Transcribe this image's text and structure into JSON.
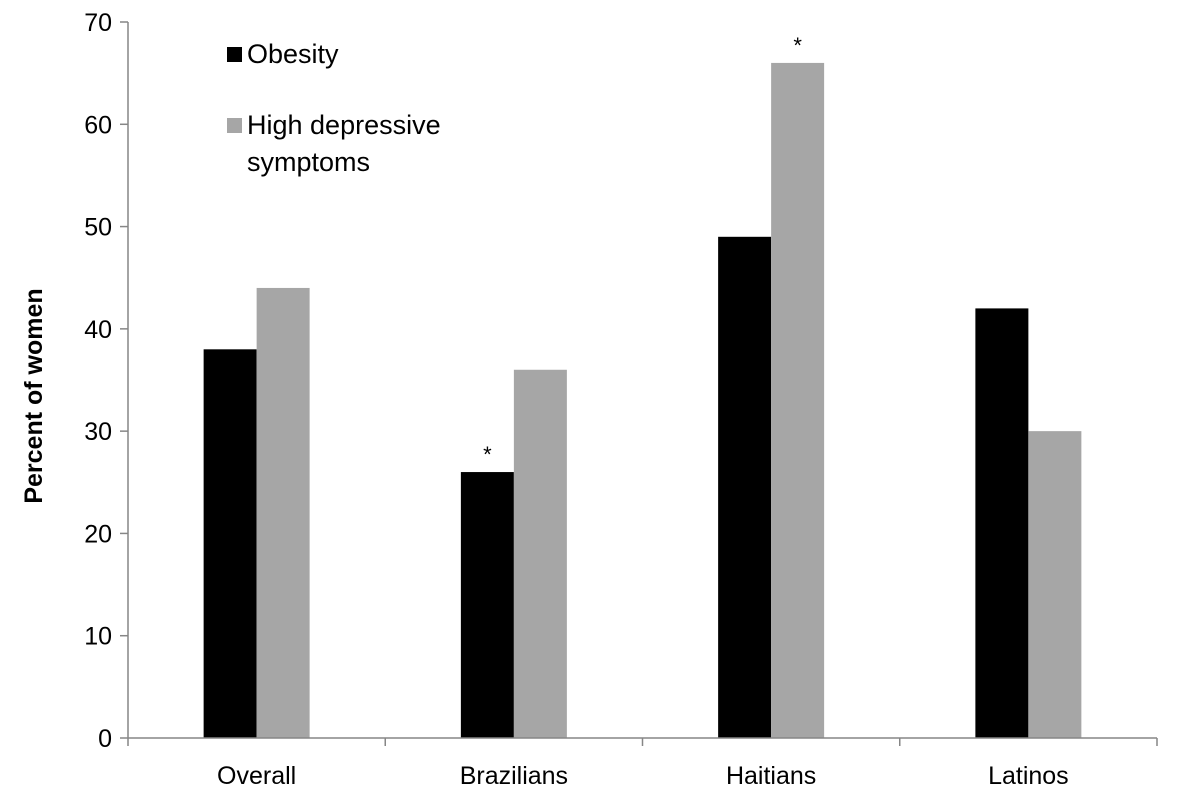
{
  "chart_data": {
    "type": "bar",
    "title": "",
    "xlabel": "",
    "ylabel": "Percent of women",
    "ylim": [
      0,
      70
    ],
    "yticks": [
      0,
      10,
      20,
      30,
      40,
      50,
      60,
      70
    ],
    "categories": [
      "Overall",
      "Brazilians",
      "Haitians",
      "Latinos"
    ],
    "series": [
      {
        "name": "Obesity",
        "values": [
          38,
          26,
          49,
          42
        ],
        "color": "#000000"
      },
      {
        "name": "High depressive symptoms",
        "values": [
          44,
          36,
          66,
          30
        ],
        "color": "#a6a6a6"
      }
    ],
    "legend": {
      "placement": "top-left",
      "lines": [
        [
          "Obesity"
        ],
        [
          "High depressive",
          "symptoms"
        ]
      ]
    },
    "annotations": [
      {
        "text": "*",
        "category": "Brazilians",
        "series": 0
      },
      {
        "text": "*",
        "category": "Haitians",
        "series": 1
      }
    ],
    "grid": false
  }
}
